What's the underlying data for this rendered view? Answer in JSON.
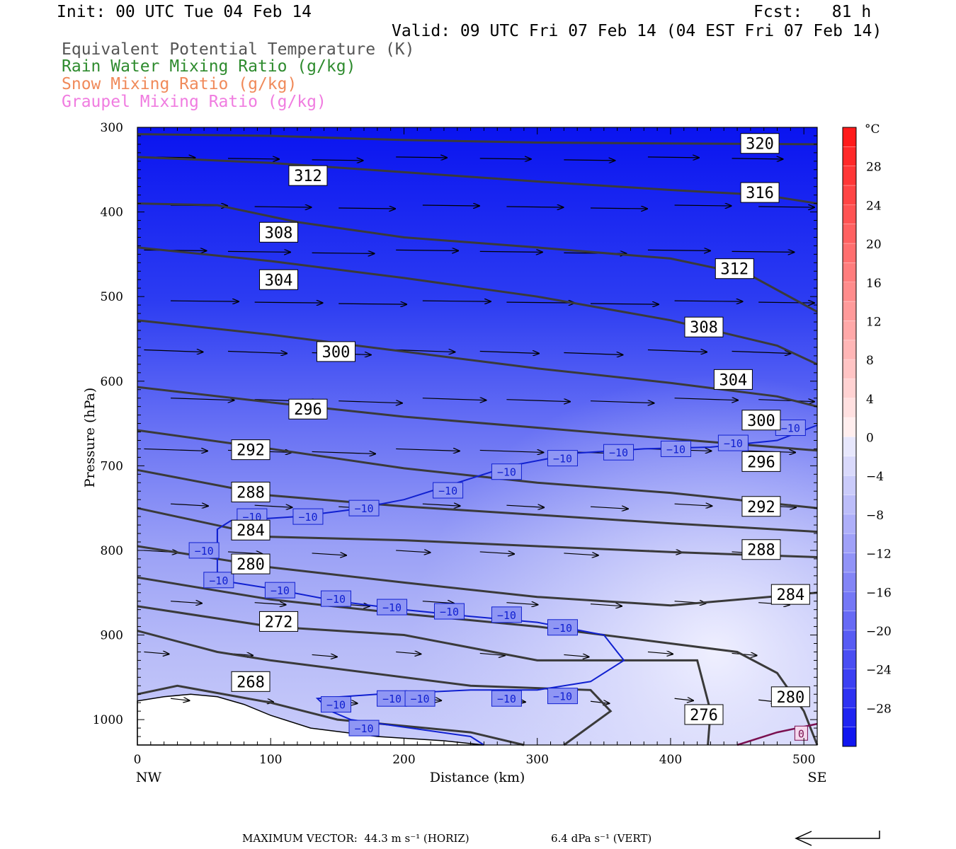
{
  "header": {
    "init": "Init: 00 UTC Tue 04 Feb 14",
    "fcst": "Fcst:   81 h",
    "valid": "Valid: 09 UTC Fri 07 Feb 14 (04 EST Fri 07 Feb 14)"
  },
  "legend": [
    {
      "label": "Equivalent Potential Temperature (K)",
      "color": "#555555"
    },
    {
      "label": "Rain Water Mixing Ratio (g/kg)",
      "color": "#2e8b2e"
    },
    {
      "label": "Snow Mixing Ratio (g/kg)",
      "color": "#f08a5a"
    },
    {
      "label": "Graupel Mixing Ratio (g/kg)",
      "color": "#f07ce0"
    }
  ],
  "footer": {
    "max_vector": "MAXIMUM VECTOR:  44.3 m s⁻¹ (HORIZ)",
    "vert": "6.4 dPa s⁻¹ (VERT)"
  },
  "chart_data": {
    "type": "contour",
    "xlabel": "Distance (km)",
    "ylabel": "Pressure (hPa)",
    "xlim": [
      0,
      510
    ],
    "ylim": [
      1030,
      300
    ],
    "x_ticks": [
      0,
      100,
      200,
      300,
      400,
      500
    ],
    "y_ticks": [
      300,
      400,
      500,
      600,
      700,
      800,
      900,
      1000
    ],
    "x_end_labels": {
      "left": "NW",
      "right": "SE"
    },
    "colorbar": {
      "unit": "°C",
      "ticks": [
        28,
        24,
        20,
        16,
        12,
        8,
        4,
        0,
        -4,
        -8,
        -12,
        -16,
        -20,
        -24,
        -28
      ],
      "range": [
        -32,
        32
      ]
    },
    "theta_e_contours": [
      {
        "label": "320",
        "points": [
          [
            0,
            308
          ],
          [
            100,
            310
          ],
          [
            200,
            315
          ],
          [
            300,
            318
          ],
          [
            400,
            319
          ],
          [
            510,
            320
          ]
        ]
      },
      {
        "label": "316",
        "points": [
          [
            0,
            335
          ],
          [
            100,
            342
          ],
          [
            200,
            353
          ],
          [
            300,
            364
          ],
          [
            400,
            374
          ],
          [
            470,
            380
          ],
          [
            510,
            390
          ]
        ]
      },
      {
        "label": "312",
        "points": [
          [
            0,
            390
          ],
          [
            60,
            392
          ],
          [
            120,
            412
          ],
          [
            200,
            430
          ],
          [
            300,
            442
          ],
          [
            400,
            455
          ],
          [
            460,
            475
          ],
          [
            510,
            518
          ]
        ]
      },
      {
        "label": "308",
        "points": [
          [
            0,
            442
          ],
          [
            100,
            458
          ],
          [
            200,
            478
          ],
          [
            300,
            500
          ],
          [
            400,
            528
          ],
          [
            480,
            558
          ],
          [
            510,
            580
          ]
        ]
      },
      {
        "label": "304",
        "points": [
          [
            0,
            528
          ],
          [
            100,
            545
          ],
          [
            200,
            565
          ],
          [
            300,
            585
          ],
          [
            400,
            602
          ],
          [
            480,
            618
          ],
          [
            510,
            630
          ]
        ]
      },
      {
        "label": "300",
        "points": [
          [
            0,
            607
          ],
          [
            100,
            625
          ],
          [
            200,
            642
          ],
          [
            300,
            655
          ],
          [
            400,
            668
          ],
          [
            510,
            682
          ]
        ]
      },
      {
        "label": "296",
        "points": [
          [
            0,
            658
          ],
          [
            100,
            680
          ],
          [
            200,
            703
          ],
          [
            300,
            720
          ],
          [
            400,
            732
          ],
          [
            510,
            750
          ]
        ]
      },
      {
        "label": "292",
        "points": [
          [
            0,
            705
          ],
          [
            100,
            735
          ],
          [
            200,
            748
          ],
          [
            300,
            758
          ],
          [
            400,
            768
          ],
          [
            510,
            778
          ]
        ]
      },
      {
        "label": "288",
        "points": [
          [
            0,
            750
          ],
          [
            100,
            784
          ],
          [
            200,
            788
          ],
          [
            300,
            795
          ],
          [
            400,
            802
          ],
          [
            510,
            808
          ]
        ]
      },
      {
        "label": "284",
        "points": [
          [
            0,
            795
          ],
          [
            100,
            820
          ],
          [
            200,
            838
          ],
          [
            300,
            855
          ],
          [
            400,
            865
          ],
          [
            510,
            850
          ]
        ]
      },
      {
        "label": "280",
        "points": [
          [
            0,
            832
          ],
          [
            100,
            858
          ],
          [
            200,
            875
          ],
          [
            300,
            890
          ],
          [
            450,
            920
          ],
          [
            480,
            945
          ],
          [
            500,
            990
          ],
          [
            510,
            1030
          ]
        ]
      },
      {
        "label": "276",
        "points": [
          [
            0,
            866
          ],
          [
            100,
            890
          ],
          [
            200,
            900
          ],
          [
            300,
            930
          ],
          [
            420,
            930
          ],
          [
            430,
            990
          ],
          [
            428,
            1030
          ]
        ]
      },
      {
        "label": "272",
        "points": [
          [
            0,
            895
          ],
          [
            60,
            920
          ],
          [
            100,
            930
          ],
          [
            250,
            960
          ],
          [
            340,
            965
          ],
          [
            355,
            990
          ],
          [
            320,
            1030
          ]
        ]
      },
      {
        "label": "268",
        "points": [
          [
            0,
            970
          ],
          [
            30,
            960
          ],
          [
            100,
            980
          ],
          [
            150,
            1000
          ],
          [
            250,
            1015
          ],
          [
            290,
            1030
          ]
        ]
      }
    ],
    "theta_e_labels": [
      {
        "text": "320",
        "x": 467,
        "p": 319
      },
      {
        "text": "316",
        "x": 467,
        "p": 377
      },
      {
        "text": "312",
        "x": 128,
        "p": 357
      },
      {
        "text": "312",
        "x": 448,
        "p": 467
      },
      {
        "text": "308",
        "x": 106,
        "p": 424
      },
      {
        "text": "308",
        "x": 425,
        "p": 536
      },
      {
        "text": "304",
        "x": 106,
        "p": 480
      },
      {
        "text": "304",
        "x": 447,
        "p": 598
      },
      {
        "text": "300",
        "x": 149,
        "p": 565
      },
      {
        "text": "300",
        "x": 468,
        "p": 646
      },
      {
        "text": "296",
        "x": 128,
        "p": 633
      },
      {
        "text": "296",
        "x": 468,
        "p": 695
      },
      {
        "text": "292",
        "x": 85,
        "p": 681
      },
      {
        "text": "292",
        "x": 468,
        "p": 748
      },
      {
        "text": "288",
        "x": 85,
        "p": 731
      },
      {
        "text": "288",
        "x": 468,
        "p": 799
      },
      {
        "text": "284",
        "x": 85,
        "p": 776
      },
      {
        "text": "284",
        "x": 490,
        "p": 852
      },
      {
        "text": "280",
        "x": 85,
        "p": 816
      },
      {
        "text": "280",
        "x": 490,
        "p": 973
      },
      {
        "text": "276",
        "x": 425,
        "p": 994
      },
      {
        "text": "272",
        "x": 106,
        "p": 884
      },
      {
        "text": "268",
        "x": 85,
        "p": 955
      }
    ],
    "minus10_isotherm": {
      "label": "−10",
      "points": [
        [
          0,
          0
        ]
      ],
      "upper": [
        [
          60,
          795
        ],
        [
          60,
          775
        ],
        [
          70,
          765
        ],
        [
          120,
          760
        ],
        [
          160,
          752
        ],
        [
          200,
          740
        ],
        [
          240,
          720
        ],
        [
          280,
          700
        ],
        [
          330,
          685
        ],
        [
          380,
          680
        ],
        [
          430,
          678
        ],
        [
          480,
          670
        ],
        [
          510,
          652
        ]
      ],
      "lower": [
        [
          60,
          775
        ],
        [
          60,
          835
        ],
        [
          100,
          845
        ],
        [
          150,
          860
        ],
        [
          200,
          870
        ],
        [
          250,
          878
        ],
        [
          300,
          885
        ],
        [
          350,
          900
        ],
        [
          360,
          920
        ],
        [
          365,
          930
        ],
        [
          340,
          955
        ],
        [
          300,
          965
        ],
        [
          250,
          965
        ],
        [
          180,
          970
        ],
        [
          135,
          975
        ],
        [
          145,
          990
        ],
        [
          160,
          1000
        ],
        [
          250,
          1020
        ],
        [
          260,
          1030
        ]
      ],
      "labels": [
        {
          "x": 50,
          "p": 800
        },
        {
          "x": 61,
          "p": 835
        },
        {
          "x": 86,
          "p": 760
        },
        {
          "x": 128,
          "p": 760
        },
        {
          "x": 170,
          "p": 750
        },
        {
          "x": 233,
          "p": 729
        },
        {
          "x": 277,
          "p": 707
        },
        {
          "x": 319,
          "p": 691
        },
        {
          "x": 361,
          "p": 684
        },
        {
          "x": 404,
          "p": 680
        },
        {
          "x": 447,
          "p": 673
        },
        {
          "x": 490,
          "p": 655
        },
        {
          "x": 107,
          "p": 847
        },
        {
          "x": 149,
          "p": 857
        },
        {
          "x": 191,
          "p": 867
        },
        {
          "x": 234,
          "p": 872
        },
        {
          "x": 277,
          "p": 876
        },
        {
          "x": 319,
          "p": 891
        },
        {
          "x": 149,
          "p": 982
        },
        {
          "x": 191,
          "p": 975
        },
        {
          "x": 212,
          "p": 975
        },
        {
          "x": 277,
          "p": 975
        },
        {
          "x": 319,
          "p": 972
        },
        {
          "x": 170,
          "p": 1010
        }
      ]
    },
    "zero_isotherm": {
      "label": "0",
      "points": [
        [
          450,
          1030
        ],
        [
          480,
          1015
        ],
        [
          510,
          1005
        ]
      ],
      "label_pos": {
        "x": 498,
        "p": 1016
      }
    },
    "terrain": [
      [
        0,
        978
      ],
      [
        20,
        973
      ],
      [
        40,
        970
      ],
      [
        60,
        973
      ],
      [
        80,
        982
      ],
      [
        100,
        995
      ],
      [
        130,
        1010
      ],
      [
        180,
        1020
      ],
      [
        230,
        1025
      ],
      [
        260,
        1030
      ]
    ]
  }
}
